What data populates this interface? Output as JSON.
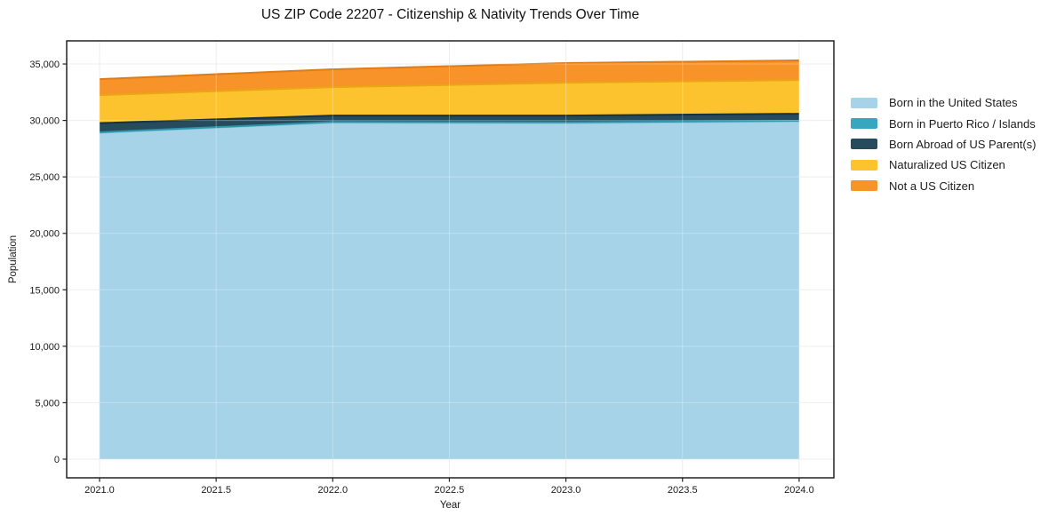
{
  "chart_data": {
    "type": "area",
    "stacked": true,
    "title": "US ZIP Code 22207 - Citizenship & Nativity Trends Over Time",
    "xlabel": "Year",
    "ylabel": "Population",
    "x": [
      2021,
      2022,
      2023,
      2024
    ],
    "series": [
      {
        "name": "Born in the United States",
        "color": "#a6d3e8",
        "edge_color": "#8ec6de",
        "values": [
          28900,
          29800,
          29750,
          29900
        ]
      },
      {
        "name": "Born in Puerto Rico / Islands",
        "color": "#38a6be",
        "edge_color": "#2d96ad",
        "values": [
          50,
          60,
          80,
          70
        ]
      },
      {
        "name": "Born Abroad of US Parent(s)",
        "color": "#254b5c",
        "edge_color": "#17323f",
        "values": [
          810,
          570,
          600,
          620
        ]
      },
      {
        "name": "Naturalized US Citizen",
        "color": "#fdc32e",
        "edge_color": "#e8a713",
        "values": [
          2480,
          2520,
          2910,
          2990
        ]
      },
      {
        "name": "Not a US Citizen",
        "color": "#f79329",
        "edge_color": "#de7c1a",
        "values": [
          1420,
          1580,
          1740,
          1740
        ]
      }
    ],
    "x_ticks": [
      2021.0,
      2021.5,
      2022.0,
      2022.5,
      2023.0,
      2023.5,
      2024.0
    ],
    "x_tick_labels": [
      "2021.0",
      "2021.5",
      "2022.0",
      "2022.5",
      "2023.0",
      "2023.5",
      "2024.0"
    ],
    "y_ticks": [
      0,
      5000,
      10000,
      15000,
      20000,
      25000,
      30000,
      35000
    ],
    "y_tick_labels": [
      "0",
      "5,000",
      "10,000",
      "15,000",
      "20,000",
      "25,000",
      "30,000",
      "35,000"
    ],
    "x_range": [
      2020.859,
      2024.149
    ],
    "y_range": [
      -1652,
      37049
    ],
    "grid": true,
    "legend_position": "right",
    "background_color": "#ffffff"
  }
}
